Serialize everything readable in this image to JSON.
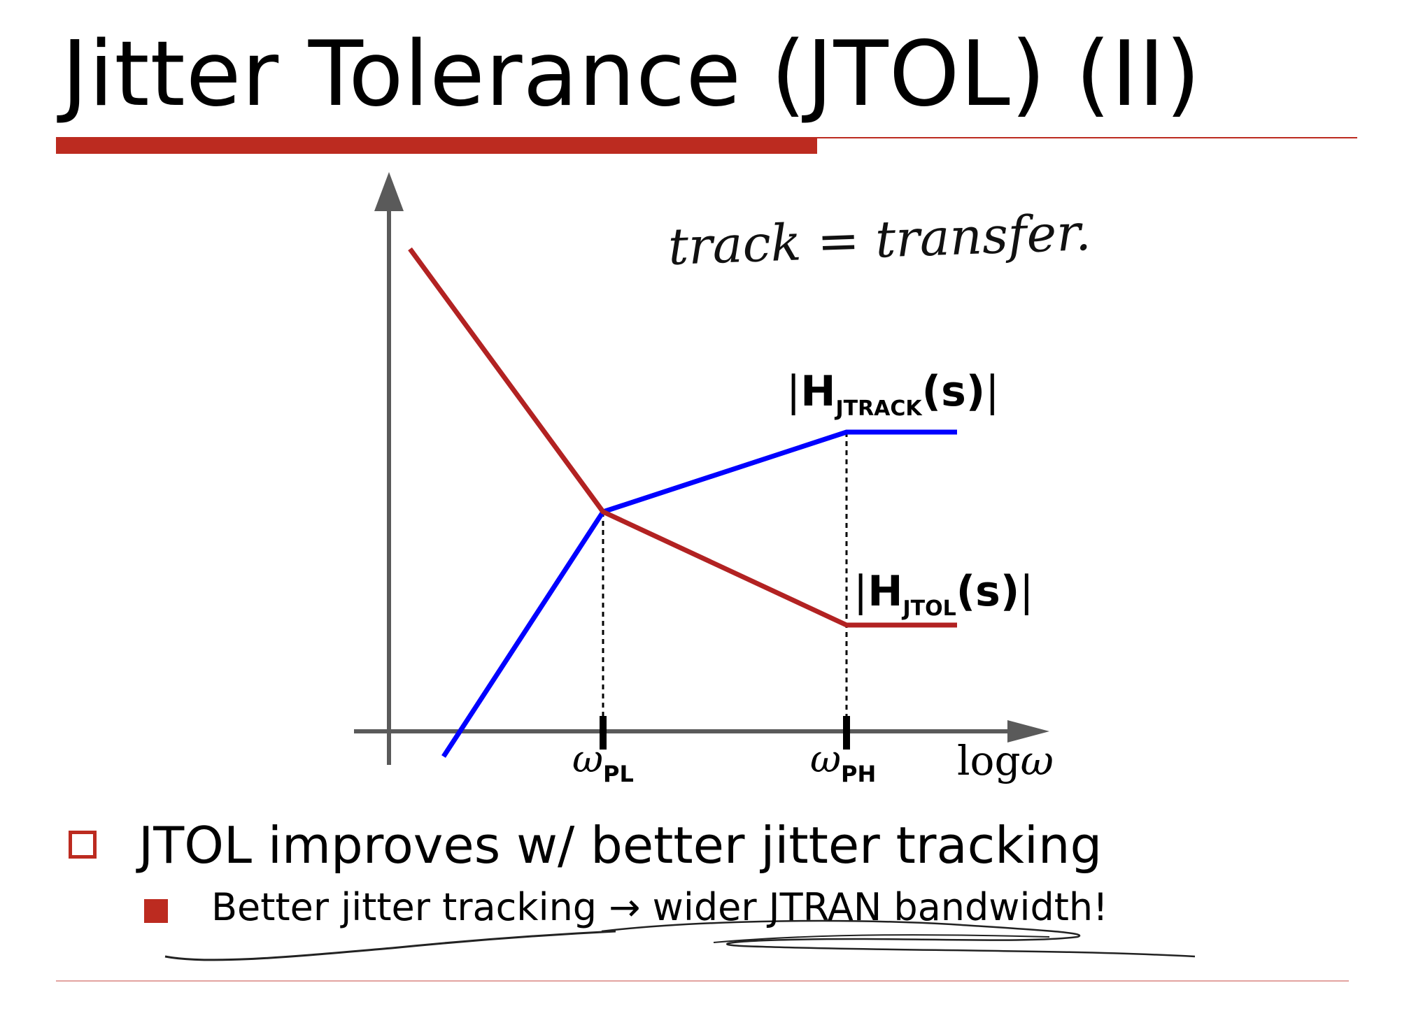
{
  "slide": {
    "title": "Jitter Tolerance (JTOL) (II)",
    "accent_color": "#BC2B20"
  },
  "diagram": {
    "handwritten_note": "track = transfer.",
    "track_label": "|H_JTRACK(s)|",
    "tol_label": "|H_JTOL(s)|",
    "x_tick_1": "ω_PL",
    "x_tick_2": "ω_PH",
    "x_axis_label": "logω",
    "track_color": "#0000FF",
    "tol_color": "#B22222",
    "axis_color": "#5a5a5a"
  },
  "bullets": {
    "level1_text": "JTOL improves w/ better jitter tracking",
    "level2_text": "Better jitter tracking → wider JTRAN bandwidth!"
  }
}
